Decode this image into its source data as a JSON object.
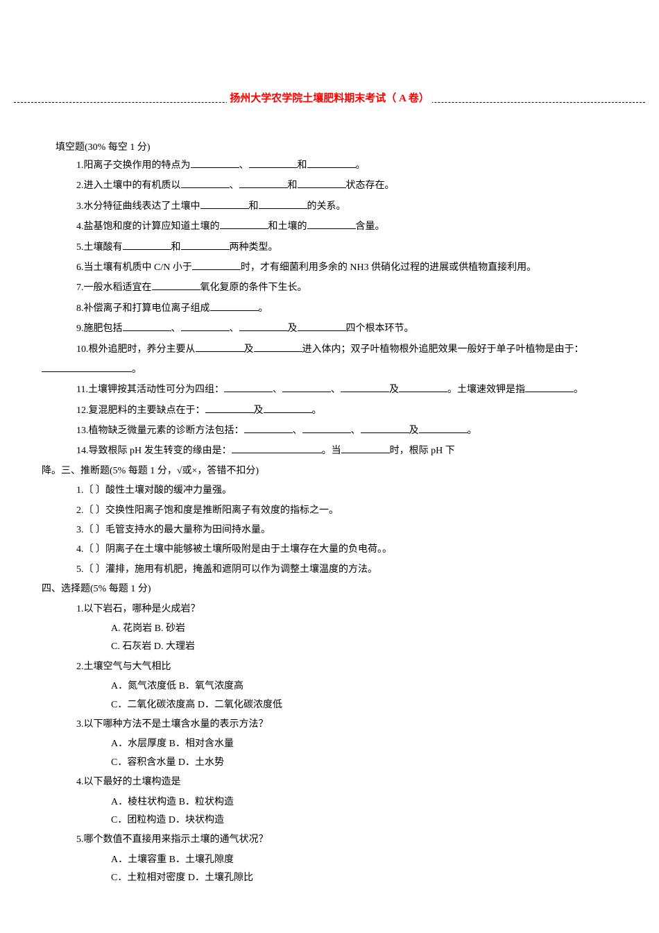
{
  "title": "扬州大学农学院土壤肥料期末考试（ A 卷）",
  "title_color": "#ff0000",
  "body_color": "#000000",
  "background_color": "#ffffff",
  "font_size_body": 14,
  "font_size_title": 15,
  "section2": {
    "header": "填空题(30% 每空 1 分)",
    "q1_a": "1.阳离子交换作用的特点为",
    "q1_b": "、",
    "q1_c": "和",
    "q1_d": "。",
    "q2_a": "2.进入土壤中的有机质以",
    "q2_b": "、",
    "q2_c": "和",
    "q2_d": "状态存在。",
    "q3_a": "3.水分特征曲线表达了土壤中",
    "q3_b": "和",
    "q3_c": "的关系。",
    "q4_a": "4.盐基饱和度的计算应知道土壤的",
    "q4_b": "和土壤的",
    "q4_c": "含量。",
    "q5_a": "5.土壤酸有",
    "q5_b": "和",
    "q5_c": "两种类型。",
    "q6_a": "6.当土壤有机质中 C/N 小于",
    "q6_b": "时，才有细菌利用多余的 NH3 供硝化过程的进展或供植物直接利用。",
    "q7_a": "7.一般水稻适宜在",
    "q7_b": "氧化复原的条件下生长。",
    "q8_a": "8.补偿离子和打算电位离子组成",
    "q8_b": "。",
    "q9_a": "9.施肥包括",
    "q9_b": "、",
    "q9_c": "、",
    "q9_d": "及",
    "q9_e": "四个根本环节。",
    "q10_a": "10.根外追肥时，养分主要从",
    "q10_b": "及",
    "q10_c": "进入体内；双子叶植物根外追肥效果一般好于单子叶植物是由于：",
    "q10_d": "。",
    "q11_a": "11.土壤钾按其活动性可分为四组：",
    "q11_b": "、",
    "q11_c": "、",
    "q11_d": "及",
    "q11_e": "。土壤速效钾是指",
    "q11_f": "。",
    "q12_a": "12.复混肥料的主要缺点在于：",
    "q12_b": "及",
    "q12_c": "。",
    "q13_a": "13.植物缺乏微量元素的诊断方法包括：",
    "q13_b": "、",
    "q13_c": "、",
    "q13_d": "及",
    "q13_e": "。",
    "q14_a": "14.导致根际 pH 发生转变的缘由是：",
    "q14_b": "。当",
    "q14_c": "时，根际 pH 下"
  },
  "section3": {
    "header": "降。三、推断题(5% 每题 1 分，√或×，答错不扣分)",
    "q1": "1.〔 〕酸性土壤对酸的缓冲力量强。",
    "q2": "2.〔 〕交换性阳离子饱和度是推断阳离子有效度的指标之一。",
    "q3": "3.〔 〕毛管支持水的最大量称为田间持水量。",
    "q4": "4.〔 〕阴离子在土壤中能够被土壤所吸附是由于土壤存在大量的负电荷。。",
    "q5": "5.〔 〕灌排，施用有机肥，掩盖和遮阴可以作为调整土壤温度的方法。"
  },
  "section4": {
    "header": "四、选择题(5% 每题 1 分)",
    "q1": "1.以下岩石，哪种是火成岩？",
    "q1_ab": "A. 花岗岩   B. 砂岩",
    "q1_cd": "C. 石灰岩 D. 大理岩",
    "q2": "2.土壤空气与大气相比",
    "q2_ab": "A．氮气浓度低     B．氧气浓度高",
    "q2_cd": "C．二氧化碳浓度高 D．二氧化碳浓度低",
    "q3": "3.以下哪种方法不是土壤含水量的表示方法？",
    "q3_ab": "A．水层厚度       B．相对含水量",
    "q3_cd": "C．容积含水量 D．土水势",
    "q4": "4.以下最好的土壤构造是",
    "q4_ab": "A．棱柱状构造 B．粒状构造",
    "q4_cd": "C．团粒构造 D．块状构造",
    "q5": "5.哪个数值不直接用来指示土壤的通气状况？",
    "q5_ab": "A．土壤容重       B．土壤孔隙度",
    "q5_cd": "C．土粒相对密度 D．土壤孔隙比"
  }
}
